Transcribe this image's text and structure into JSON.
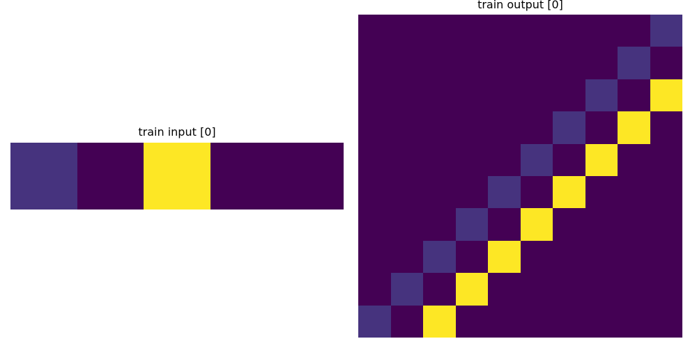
{
  "palette": {
    "0": "#440154",
    "1": "#46337e",
    "4": "#fde725"
  },
  "panels": {
    "input": {
      "title": "train input [0]",
      "grid": [
        [
          1,
          0,
          4,
          0,
          0
        ]
      ]
    },
    "output": {
      "title": "train output [0]",
      "grid": [
        [
          0,
          0,
          0,
          0,
          0,
          0,
          0,
          0,
          0,
          1
        ],
        [
          0,
          0,
          0,
          0,
          0,
          0,
          0,
          0,
          1,
          0
        ],
        [
          0,
          0,
          0,
          0,
          0,
          0,
          0,
          1,
          0,
          4
        ],
        [
          0,
          0,
          0,
          0,
          0,
          0,
          1,
          0,
          4,
          0
        ],
        [
          0,
          0,
          0,
          0,
          0,
          1,
          0,
          4,
          0,
          0
        ],
        [
          0,
          0,
          0,
          0,
          1,
          0,
          4,
          0,
          0,
          0
        ],
        [
          0,
          0,
          0,
          1,
          0,
          4,
          0,
          0,
          0,
          0
        ],
        [
          0,
          0,
          1,
          0,
          4,
          0,
          0,
          0,
          0,
          0
        ],
        [
          0,
          1,
          0,
          4,
          0,
          0,
          0,
          0,
          0,
          0
        ],
        [
          1,
          0,
          4,
          0,
          0,
          0,
          0,
          0,
          0,
          0
        ]
      ]
    }
  }
}
